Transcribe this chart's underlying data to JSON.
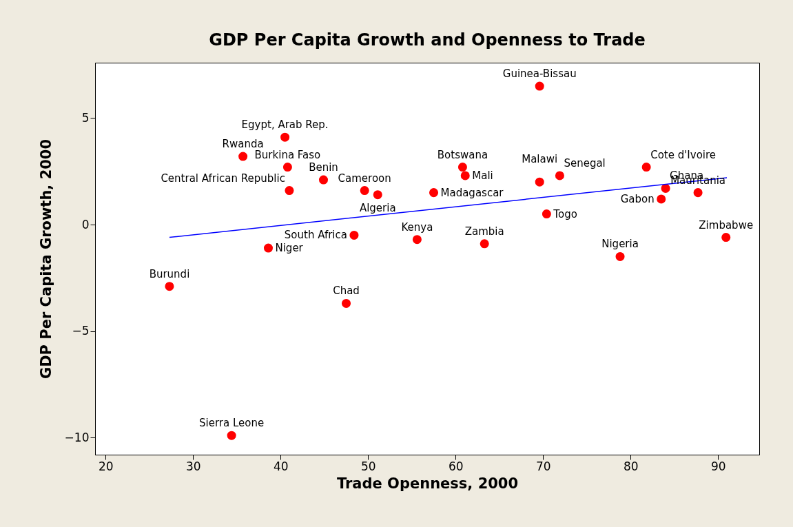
{
  "chart_data": {
    "type": "scatter",
    "title": "GDP Per Capita Growth and Openness to Trade",
    "xlabel": "Trade Openness, 2000",
    "ylabel": "GDP Per Capita Growth, 2000",
    "xlim": [
      18.8,
      94.7
    ],
    "ylim": [
      -10.8,
      7.6
    ],
    "xticks": [
      20,
      30,
      40,
      50,
      60,
      70,
      80,
      90
    ],
    "yticks": [
      -10,
      -5,
      0,
      5
    ],
    "grid": false,
    "series": [
      {
        "marker": "circle",
        "color": "#ff0000",
        "x": [
          69.6,
          40.5,
          35.7,
          40.8,
          44.9,
          41.0,
          49.6,
          51.1,
          57.5,
          60.8,
          61.1,
          69.6,
          71.9,
          70.4,
          81.8,
          84.0,
          83.5,
          87.7,
          90.9,
          78.8,
          63.3,
          55.6,
          48.4,
          38.6,
          47.5,
          27.3,
          34.4
        ],
        "values": [
          6.5,
          4.1,
          3.2,
          2.7,
          2.1,
          1.6,
          1.6,
          1.4,
          1.5,
          2.7,
          2.3,
          2.0,
          2.3,
          0.5,
          2.7,
          1.7,
          1.2,
          1.5,
          -0.6,
          -1.5,
          -0.9,
          -0.7,
          -0.5,
          -1.1,
          -3.7,
          -2.9,
          -9.9
        ]
      },
      {
        "type": "line",
        "marker": "none",
        "color": "#0000ff",
        "x": [
          27.3,
          91.0
        ],
        "values": [
          -0.6,
          2.2
        ]
      }
    ],
    "annotations": [
      {
        "text": "Guinea-Bissau",
        "x": 69.6,
        "y": 6.5
      },
      {
        "text": "Egypt, Arab Rep.",
        "x": 40.5,
        "y": 4.1
      },
      {
        "text": "Rwanda",
        "x": 35.7,
        "y": 3.2
      },
      {
        "text": "Burkina Faso",
        "x": 40.8,
        "y": 2.7
      },
      {
        "text": "Benin",
        "x": 44.9,
        "y": 2.1
      },
      {
        "text": "Central African Republic",
        "x": 41.0,
        "y": 1.6
      },
      {
        "text": "Cameroon",
        "x": 49.6,
        "y": 1.6
      },
      {
        "text": "Algeria",
        "x": 51.1,
        "y": 1.4
      },
      {
        "text": "Madagascar",
        "x": 57.5,
        "y": 1.5
      },
      {
        "text": "Botswana",
        "x": 60.8,
        "y": 2.7
      },
      {
        "text": "Mali",
        "x": 61.1,
        "y": 2.3
      },
      {
        "text": "Malawi",
        "x": 69.6,
        "y": 2.0
      },
      {
        "text": "Senegal",
        "x": 71.9,
        "y": 2.3
      },
      {
        "text": "Togo",
        "x": 70.4,
        "y": 0.5
      },
      {
        "text": "Cote d'Ivoire",
        "x": 81.8,
        "y": 2.7
      },
      {
        "text": "Ghana",
        "x": 84.0,
        "y": 1.7
      },
      {
        "text": "Gabon",
        "x": 83.5,
        "y": 1.2
      },
      {
        "text": "Mauritania",
        "x": 87.7,
        "y": 1.5
      },
      {
        "text": "Zimbabwe",
        "x": 90.9,
        "y": -0.6
      },
      {
        "text": "Nigeria",
        "x": 78.8,
        "y": -1.5
      },
      {
        "text": "Zambia",
        "x": 63.3,
        "y": -0.9
      },
      {
        "text": "Kenya",
        "x": 55.6,
        "y": -0.7
      },
      {
        "text": "South Africa",
        "x": 48.4,
        "y": -0.5
      },
      {
        "text": "Niger",
        "x": 38.6,
        "y": -1.1
      },
      {
        "text": "Chad",
        "x": 47.5,
        "y": -3.7
      },
      {
        "text": "Burundi",
        "x": 27.3,
        "y": -2.9
      },
      {
        "text": "Sierra Leone",
        "x": 34.4,
        "y": -9.9
      }
    ]
  }
}
